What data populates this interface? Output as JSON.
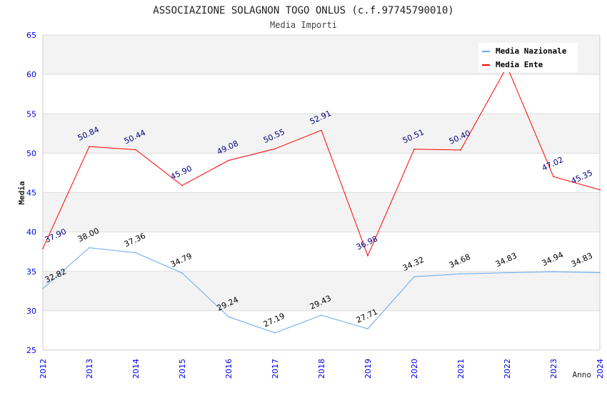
{
  "chart_data": {
    "type": "line",
    "title": "ASSOCIAZIONE SOLAGNON TOGO ONLUS (c.f.97745790010)",
    "subtitle": "Media Importi",
    "xlabel": "Anno",
    "ylabel": "Media",
    "ylim": [
      25,
      65
    ],
    "yticks": [
      "25",
      "30",
      "35",
      "40",
      "45",
      "50",
      "55",
      "60",
      "65"
    ],
    "x": [
      "2012",
      "2013",
      "2014",
      "2015",
      "2016",
      "2017",
      "2018",
      "2019",
      "2020",
      "2021",
      "2022",
      "2023",
      "2024"
    ],
    "legend_position": "top-right",
    "series": [
      {
        "name": "Media Nazionale",
        "color": "#64aaf0",
        "label_color": "#000000",
        "values": [
          32.82,
          38.0,
          37.36,
          34.79,
          29.24,
          27.19,
          29.43,
          27.71,
          34.32,
          34.68,
          34.83,
          34.94,
          34.83
        ],
        "labels": [
          "32.82",
          "38.00",
          "37.36",
          "34.79",
          "29.24",
          "27.19",
          "29.43",
          "27.71",
          "34.32",
          "34.68",
          "34.83",
          "34.94",
          "34.83"
        ]
      },
      {
        "name": "Media Ente",
        "color": "#ff0000",
        "label_color": "#000080",
        "values": [
          37.9,
          50.84,
          50.44,
          45.9,
          49.08,
          50.55,
          52.91,
          36.98,
          50.51,
          50.4,
          61.0,
          47.02,
          45.35
        ],
        "labels": [
          "37.90",
          "50.84",
          "50.44",
          "45.90",
          "49.08",
          "50.55",
          "52.91",
          "36.98",
          "50.51",
          "50.40",
          null,
          "47.02",
          "45.35"
        ]
      }
    ]
  }
}
